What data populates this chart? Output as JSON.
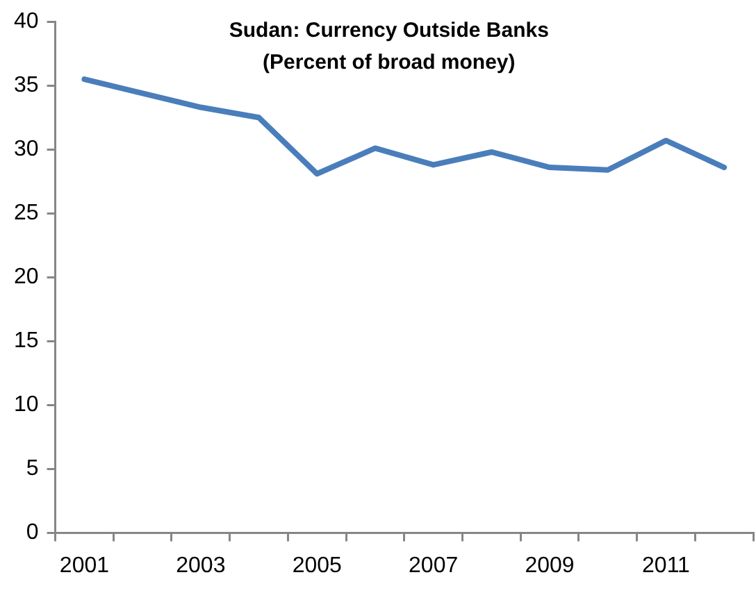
{
  "chart_data": {
    "type": "line",
    "title": "Sudan: Currency Outside Banks",
    "subtitle": "(Percent of broad money)",
    "categories": [
      "2001",
      null,
      "2003",
      null,
      "2005",
      null,
      "2007",
      null,
      "2009",
      null,
      "2011",
      null
    ],
    "values": [
      35.5,
      34.4,
      33.3,
      32.5,
      28.1,
      30.1,
      28.8,
      29.8,
      28.6,
      28.4,
      30.7,
      28.6
    ],
    "color": "#4a7ebb",
    "ylim": [
      0,
      40
    ],
    "yticks": [
      0,
      5,
      10,
      15,
      20,
      25,
      30,
      35,
      40
    ],
    "grid": false,
    "legend": false,
    "marker": "none",
    "line_style": "solid"
  }
}
